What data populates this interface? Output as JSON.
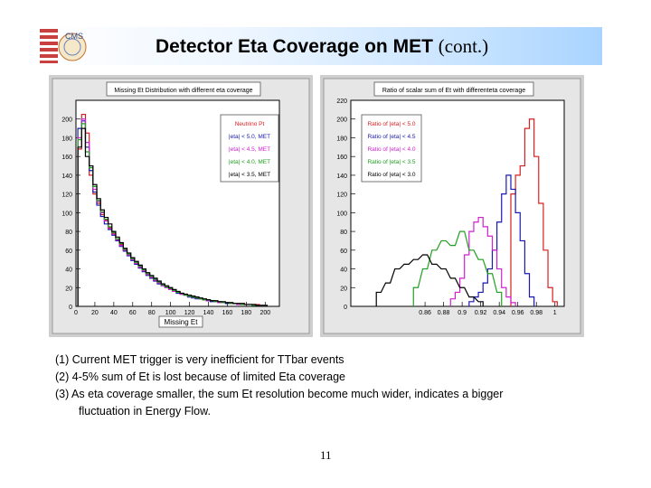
{
  "slide": {
    "title_main": "Detector Eta Coverage on MET",
    "title_cont": "(cont.)",
    "logo_text": "CMS",
    "page_number": "11"
  },
  "notes": [
    "(1) Current MET trigger is very inefficient for TTbar events",
    "(2) 4-5% sum of Et is lost because of limited Eta coverage",
    "(3) As eta coverage smaller, the sum Et resolution become much wider, indicates a bigger",
    "fluctuation in Energy Flow."
  ],
  "chart_data": [
    {
      "type": "histogram",
      "title": "Missing Et Distribution with different eta coverage",
      "xlabel": "Missing Et",
      "ylabel": "",
      "xlim": [
        0,
        215
      ],
      "ylim": [
        0,
        220
      ],
      "x_ticks": [
        "0",
        "20",
        "40",
        "60",
        "80",
        "100",
        "120",
        "140",
        "160",
        "180",
        "200"
      ],
      "y_ticks": [
        "0",
        "20",
        "40",
        "60",
        "80",
        "100",
        "120",
        "140",
        "160",
        "180",
        "200"
      ],
      "legend_position": "top-right",
      "series": [
        {
          "name": "Neutrino Pt",
          "color": "#d62020",
          "x": [
            4,
            8,
            12,
            16,
            20,
            24,
            28,
            32,
            36,
            40,
            44,
            48,
            52,
            56,
            60,
            64,
            68,
            72,
            76,
            80,
            84,
            88,
            92,
            96,
            100,
            104,
            108,
            112,
            116,
            120,
            124,
            128,
            132,
            136,
            140,
            144,
            148,
            152,
            156,
            160,
            164,
            168,
            172,
            176,
            180,
            184,
            188,
            192,
            196,
            200
          ],
          "values": [
            168,
            205,
            185,
            140,
            120,
            110,
            98,
            92,
            84,
            78,
            72,
            66,
            60,
            55,
            52,
            45,
            41,
            38,
            35,
            31,
            28,
            25,
            23,
            21,
            19,
            17,
            15,
            13,
            12,
            11,
            10,
            9,
            8,
            7,
            6,
            6,
            5,
            5,
            4,
            4,
            4,
            3,
            3,
            3,
            2,
            2,
            2,
            2,
            1,
            1
          ]
        },
        {
          "name": "|eta| < 5.0, MET",
          "color": "#1a1ab0",
          "x": [
            4,
            8,
            12,
            16,
            20,
            24,
            28,
            32,
            36,
            40,
            44,
            48,
            52,
            56,
            60,
            64,
            68,
            72,
            76,
            80,
            84,
            88,
            92,
            96,
            100,
            104,
            108,
            112,
            116,
            120,
            124,
            128,
            132,
            136,
            140,
            144,
            148,
            152,
            156,
            160,
            164,
            168,
            172,
            176,
            180,
            184,
            188,
            192,
            196,
            200
          ],
          "values": [
            190,
            198,
            170,
            145,
            122,
            108,
            96,
            88,
            82,
            76,
            70,
            64,
            59,
            54,
            49,
            45,
            41,
            37,
            33,
            30,
            27,
            24,
            22,
            20,
            18,
            16,
            14,
            13,
            12,
            10,
            9,
            8,
            8,
            7,
            6,
            5,
            5,
            4,
            4,
            3,
            3,
            3,
            2,
            2,
            2,
            2,
            1,
            1,
            1,
            1
          ]
        },
        {
          "name": "|eta| < 4.5, MET",
          "color": "#d020d0",
          "x": [
            4,
            8,
            12,
            16,
            20,
            24,
            28,
            32,
            36,
            40,
            44,
            48,
            52,
            56,
            60,
            64,
            68,
            72,
            76,
            80,
            84,
            88,
            92,
            96,
            100,
            104,
            108,
            112,
            116,
            120,
            124,
            128,
            132,
            136,
            140,
            144,
            148,
            152,
            156,
            160,
            164,
            168,
            172,
            176,
            180,
            184,
            188,
            192,
            196,
            200
          ],
          "values": [
            180,
            200,
            175,
            150,
            125,
            112,
            100,
            91,
            83,
            77,
            71,
            65,
            60,
            55,
            50,
            46,
            42,
            38,
            34,
            31,
            28,
            25,
            22,
            20,
            18,
            16,
            15,
            13,
            12,
            11,
            10,
            9,
            8,
            7,
            6,
            6,
            5,
            4,
            4,
            4,
            3,
            3,
            2,
            2,
            2,
            2,
            2,
            1,
            1,
            1
          ]
        },
        {
          "name": "|eta| < 4.0, MET",
          "color": "#20a020",
          "x": [
            4,
            8,
            12,
            16,
            20,
            24,
            28,
            32,
            36,
            40,
            44,
            48,
            52,
            56,
            60,
            64,
            68,
            72,
            76,
            80,
            84,
            88,
            92,
            96,
            100,
            104,
            108,
            112,
            116,
            120,
            124,
            128,
            132,
            136,
            140,
            144,
            148,
            152,
            156,
            160,
            164,
            168,
            172,
            176,
            180,
            184,
            188,
            192,
            196,
            200
          ],
          "values": [
            178,
            195,
            165,
            148,
            128,
            113,
            101,
            93,
            85,
            79,
            72,
            67,
            61,
            56,
            51,
            47,
            43,
            39,
            35,
            32,
            29,
            26,
            23,
            21,
            19,
            17,
            15,
            14,
            12,
            11,
            10,
            9,
            8,
            7,
            7,
            6,
            5,
            5,
            4,
            4,
            3,
            3,
            3,
            2,
            2,
            2,
            1,
            1,
            1,
            1
          ]
        },
        {
          "name": "|eta| < 3.5, MET",
          "color": "#000000",
          "x": [
            4,
            8,
            12,
            16,
            20,
            24,
            28,
            32,
            36,
            40,
            44,
            48,
            52,
            56,
            60,
            64,
            68,
            72,
            76,
            80,
            84,
            88,
            92,
            96,
            100,
            104,
            108,
            112,
            116,
            120,
            124,
            128,
            132,
            136,
            140,
            144,
            148,
            152,
            156,
            160,
            164,
            168,
            172,
            176,
            180,
            184,
            188,
            192,
            196,
            200
          ],
          "values": [
            170,
            190,
            160,
            150,
            130,
            115,
            103,
            95,
            88,
            80,
            74,
            68,
            62,
            57,
            52,
            48,
            44,
            40,
            36,
            33,
            30,
            27,
            24,
            22,
            20,
            18,
            16,
            14,
            13,
            12,
            11,
            10,
            9,
            8,
            7,
            6,
            6,
            5,
            5,
            4,
            4,
            3,
            3,
            3,
            2,
            2,
            2,
            1,
            1,
            1
          ]
        }
      ]
    },
    {
      "type": "histogram",
      "title": "Ratio of scalar sum of Et with differenteta coverage",
      "xlabel": "",
      "ylabel": "",
      "xlim": [
        0.78,
        1.01
      ],
      "ylim": [
        0,
        220
      ],
      "x_ticks": [
        "0.86",
        "0.88",
        "0.9",
        "0.92",
        "0.94",
        "0.96",
        "0.98",
        "1"
      ],
      "y_ticks": [
        "0",
        "20",
        "40",
        "60",
        "80",
        "100",
        "120",
        "140",
        "160",
        "180",
        "200",
        "220"
      ],
      "legend_position": "top-left",
      "series": [
        {
          "name": "Ratio of |eta| < 5.0",
          "color": "#d62020",
          "x": [
            0.955,
            0.96,
            0.965,
            0.97,
            0.975,
            0.98,
            0.985,
            0.99,
            0.995,
            1.0
          ],
          "values": [
            120,
            140,
            150,
            190,
            200,
            160,
            110,
            60,
            20,
            5
          ]
        },
        {
          "name": "Ratio of |eta| < 4.5",
          "color": "#1a1ab0",
          "x": [
            0.91,
            0.915,
            0.92,
            0.925,
            0.93,
            0.935,
            0.94,
            0.945,
            0.95,
            0.955,
            0.96,
            0.965,
            0.97,
            0.975
          ],
          "values": [
            5,
            10,
            15,
            25,
            40,
            60,
            90,
            120,
            140,
            125,
            100,
            70,
            35,
            10
          ]
        },
        {
          "name": "Ratio of |eta| < 4.0",
          "color": "#d020d0",
          "x": [
            0.89,
            0.895,
            0.9,
            0.905,
            0.91,
            0.915,
            0.92,
            0.925,
            0.93,
            0.935,
            0.94,
            0.945,
            0.95,
            0.955
          ],
          "values": [
            8,
            15,
            30,
            55,
            80,
            90,
            95,
            85,
            75,
            60,
            40,
            20,
            10,
            4
          ]
        },
        {
          "name": "Ratio of |eta| < 3.5",
          "color": "#20a020",
          "x": [
            0.85,
            0.86,
            0.87,
            0.88,
            0.89,
            0.9,
            0.91,
            0.92,
            0.93,
            0.94
          ],
          "values": [
            20,
            40,
            60,
            70,
            65,
            80,
            60,
            50,
            35,
            15
          ]
        },
        {
          "name": "Ratio of |eta| < 3.0",
          "color": "#000000",
          "x": [
            0.81,
            0.82,
            0.83,
            0.84,
            0.85,
            0.86,
            0.87,
            0.88,
            0.89,
            0.9,
            0.91,
            0.92
          ],
          "values": [
            15,
            25,
            40,
            45,
            50,
            55,
            45,
            40,
            30,
            20,
            10,
            5
          ]
        }
      ]
    }
  ],
  "colors": {
    "canvas": "#cfcfcf",
    "frame": "#eeeeee",
    "title_bar": "#ffffff"
  }
}
